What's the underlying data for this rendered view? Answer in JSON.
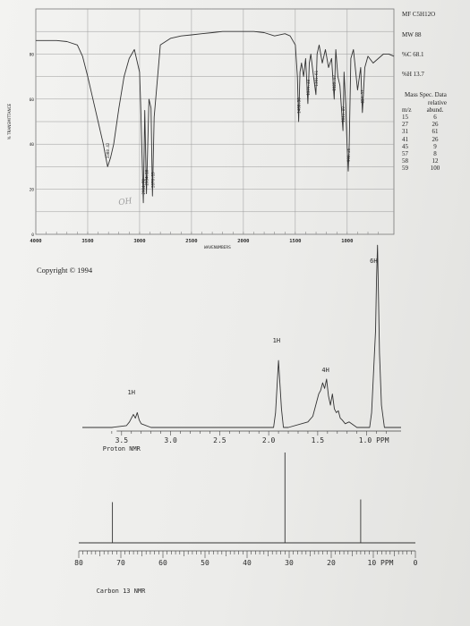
{
  "formula": {
    "label": "MF",
    "value": "C5H12O"
  },
  "mw": {
    "label": "MW",
    "value": "88"
  },
  "pct_c": {
    "label": "%C",
    "value": "68.1"
  },
  "pct_h": {
    "label": "%H",
    "value": "13.7"
  },
  "mass_spec": {
    "title": "Mass Spec. Data",
    "col_sub": "relative",
    "col_mz": "m/z",
    "col_abund": "abund.",
    "rows": [
      {
        "mz": "15",
        "abund": "6"
      },
      {
        "mz": "27",
        "abund": "26"
      },
      {
        "mz": "31",
        "abund": "61"
      },
      {
        "mz": "41",
        "abund": "26"
      },
      {
        "mz": "45",
        "abund": "9"
      },
      {
        "mz": "57",
        "abund": "8"
      },
      {
        "mz": "58",
        "abund": "12"
      },
      {
        "mz": "59",
        "abund": "100"
      }
    ]
  },
  "copyright": "Copyright © 1994",
  "chart_data": [
    {
      "type": "line",
      "xlabel": "WAVENUMBERS",
      "ylabel": "% TRANSMITTANCE",
      "xlim": [
        4000,
        550
      ],
      "ylim": [
        0,
        100
      ],
      "x_ticks": [
        "4000",
        "3500",
        "3000",
        "2500",
        "2000",
        "1500",
        "1000"
      ],
      "y_ticks": [
        "80",
        "60",
        "40",
        "20",
        "0"
      ],
      "handwritten_annotation": "OH",
      "peak_labels": [
        "3308.42",
        "2964.72",
        "2934.10",
        "2876.13",
        "1468.30",
        "1379.38",
        "1301.61",
        "1125.97",
        "1041.89",
        "990.26",
        "854.57"
      ],
      "series": [
        {
          "x": [
            4000,
            3800,
            3700,
            3600,
            3550,
            3500,
            3450,
            3400,
            3350,
            3330,
            3308,
            3280,
            3250,
            3200,
            3150,
            3100,
            3050,
            3000,
            2990,
            2964,
            2950,
            2934,
            2910,
            2890,
            2876,
            2860,
            2800,
            2700,
            2600,
            2500,
            2400,
            2300,
            2200,
            2100,
            2000,
            1900,
            1800,
            1700,
            1600,
            1550,
            1500,
            1480,
            1468,
            1455,
            1440,
            1420,
            1400,
            1379,
            1365,
            1350,
            1330,
            1301,
            1290,
            1270,
            1240,
            1210,
            1180,
            1150,
            1125,
            1110,
            1090,
            1070,
            1041,
            1030,
            1015,
            1000,
            990,
            980,
            965,
            940,
            900,
            870,
            854,
            830,
            800,
            750,
            700,
            650,
            600,
            550
          ],
          "y": [
            86,
            86,
            85.5,
            84,
            79,
            70,
            60,
            50,
            40,
            35,
            30,
            34,
            40,
            56,
            70,
            78,
            82,
            72,
            58,
            14,
            55,
            18,
            60,
            56,
            17,
            52,
            84,
            87,
            88,
            88.5,
            89,
            89.5,
            90,
            90,
            90,
            90,
            89.5,
            88,
            89,
            88,
            84,
            70,
            50,
            72,
            76,
            70,
            78,
            58,
            76,
            80,
            72,
            62,
            80,
            84,
            76,
            82,
            74,
            78,
            60,
            82,
            70,
            66,
            46,
            72,
            58,
            38,
            28,
            40,
            78,
            82,
            64,
            74,
            54,
            74,
            79,
            76,
            78,
            80,
            80,
            79
          ]
        }
      ]
    },
    {
      "type": "line",
      "xlabel": "Proton NMR",
      "x_unit": "PPM",
      "xlim": [
        3.9,
        0.65
      ],
      "x_ticks": [
        "3.5",
        "3.0",
        "2.5",
        "2.0",
        "1.5",
        "1.0"
      ],
      "integrals": [
        "1H",
        "1H",
        "4H",
        "6H"
      ],
      "series": [
        {
          "x": [
            3.9,
            3.6,
            3.45,
            3.42,
            3.4,
            3.38,
            3.36,
            3.34,
            3.32,
            3.3,
            3.2,
            2.3,
            1.95,
            1.93,
            1.9,
            1.87,
            1.85,
            1.8,
            1.6,
            1.55,
            1.53,
            1.51,
            1.49,
            1.47,
            1.45,
            1.43,
            1.41,
            1.39,
            1.37,
            1.35,
            1.33,
            1.31,
            1.29,
            1.27,
            1.25,
            1.22,
            1.18,
            1.1,
            0.97,
            0.95,
            0.93,
            0.91,
            0.9,
            0.89,
            0.88,
            0.87,
            0.85,
            0.82,
            0.7,
            0.65
          ],
          "y": [
            0,
            0,
            1,
            3,
            5,
            7,
            5,
            8,
            4,
            2,
            0,
            0,
            0,
            8,
            36,
            10,
            0,
            0,
            3,
            6,
            10,
            14,
            18,
            20,
            24,
            21,
            26,
            17,
            12,
            18,
            10,
            8,
            9,
            5,
            4,
            2,
            3,
            0,
            0,
            8,
            30,
            52,
            80,
            98,
            70,
            40,
            12,
            0,
            0,
            0
          ]
        }
      ]
    },
    {
      "type": "line",
      "xlabel": "Carbon 13 NMR",
      "x_unit": "PPM",
      "xlim": [
        80,
        0
      ],
      "x_ticks": [
        "80",
        "70",
        "60",
        "50",
        "40",
        "30",
        "20",
        "10",
        "0"
      ],
      "series": [
        {
          "x": [
            80,
            72.01,
            72,
            71.99,
            31.01,
            31,
            30.99,
            13.01,
            13,
            12.99,
            0
          ],
          "y": [
            0,
            0,
            45,
            0,
            0,
            100,
            0,
            0,
            48,
            0,
            0
          ]
        }
      ]
    }
  ]
}
